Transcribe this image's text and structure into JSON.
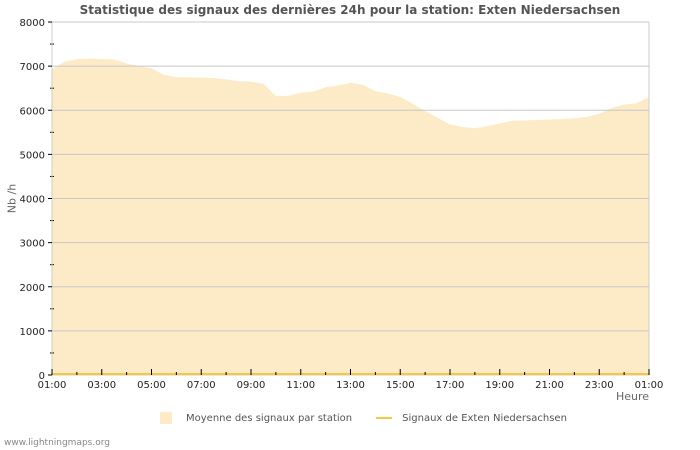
{
  "chart_data": {
    "type": "area",
    "title": "Statistique des signaux des dernières 24h pour la station: Exten Niedersachsen",
    "xlabel": "Heure",
    "ylabel": "Nb /h",
    "ylim": [
      0,
      8000
    ],
    "yticks": [
      0,
      1000,
      2000,
      3000,
      4000,
      5000,
      6000,
      7000,
      8000
    ],
    "xticks": [
      "01:00",
      "03:00",
      "05:00",
      "07:00",
      "09:00",
      "11:00",
      "13:00",
      "15:00",
      "17:00",
      "19:00",
      "21:00",
      "23:00",
      "01:00"
    ],
    "grid": true,
    "legend_position": "bottom",
    "x_hours": [
      0,
      0.5,
      1,
      1.5,
      2,
      2.5,
      3,
      3.5,
      4,
      4.5,
      5,
      5.5,
      6,
      6.5,
      7,
      7.5,
      8,
      8.5,
      9,
      9.5,
      10,
      10.5,
      11,
      11.5,
      12,
      12.5,
      13,
      13.5,
      14,
      14.5,
      15,
      15.5,
      16,
      16.5,
      17,
      17.5,
      18,
      18.5,
      19,
      19.5,
      20,
      20.5,
      21,
      21.5,
      22,
      22.5,
      23,
      23.5,
      24
    ],
    "series": [
      {
        "name": "Moyenne des signaux par station",
        "kind": "area",
        "color": "#fdebc8",
        "values": [
          6930,
          7100,
          7160,
          7170,
          7160,
          7150,
          7060,
          7000,
          6950,
          6800,
          6750,
          6750,
          6740,
          6730,
          6700,
          6660,
          6650,
          6600,
          6320,
          6330,
          6400,
          6420,
          6520,
          6560,
          6620,
          6580,
          6430,
          6380,
          6300,
          6150,
          5980,
          5830,
          5680,
          5620,
          5590,
          5640,
          5700,
          5760,
          5770,
          5780,
          5790,
          5800,
          5820,
          5850,
          5920,
          6050,
          6130,
          6160,
          6300
        ]
      },
      {
        "name": "Signaux de Exten Niedersachsen",
        "kind": "line",
        "color": "#f5c842",
        "values": [
          0,
          0,
          0,
          0,
          0,
          0,
          0,
          0,
          0,
          0,
          0,
          0,
          0,
          0,
          0,
          0,
          0,
          0,
          0,
          0,
          0,
          0,
          0,
          0,
          0,
          0,
          0,
          0,
          0,
          0,
          0,
          0,
          0,
          0,
          0,
          0,
          0,
          0,
          0,
          0,
          0,
          0,
          0,
          0,
          0,
          0,
          0,
          0,
          0
        ]
      }
    ]
  },
  "legend": {
    "item1": "Moyenne des signaux par station",
    "item2": "Signaux de Exten Niedersachsen"
  },
  "footer": "www.lightningmaps.org"
}
